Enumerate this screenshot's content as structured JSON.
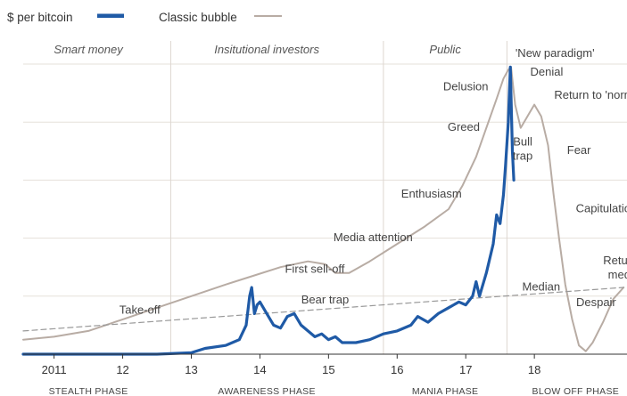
{
  "legend": {
    "btc_label": "$ per bitcoin",
    "bubble_label": "Classic bubble"
  },
  "phases_top": [
    {
      "label": "Smart money",
      "x": 2011.5
    },
    {
      "label": "Insitutional investors",
      "x": 2014.1
    },
    {
      "label": "Public",
      "x": 2016.7
    }
  ],
  "phases_bottom": [
    {
      "label": "STEALTH PHASE",
      "x": 2011.5
    },
    {
      "label": "AWARENESS PHASE",
      "x": 2014.1
    },
    {
      "label": "MANIA PHASE",
      "x": 2016.7
    },
    {
      "label": "BLOW OFF PHASE",
      "x": 2018.6
    }
  ],
  "colors": {
    "btc": "#1f5aa6",
    "bubble": "#b8aca4",
    "median": "#999999",
    "grid": "#e6e0da",
    "divider": "#ddd6d0",
    "baseline": "#333333"
  },
  "chart_data": {
    "type": "line",
    "title": "",
    "xlabel": "",
    "ylabel": "",
    "xlim": [
      2010.55,
      2019.35
    ],
    "ylim": [
      0,
      100
    ],
    "x_ticks": [
      {
        "x": 2011,
        "label": "2011"
      },
      {
        "x": 2012,
        "label": "12"
      },
      {
        "x": 2013,
        "label": "13"
      },
      {
        "x": 2014,
        "label": "14"
      },
      {
        "x": 2015,
        "label": "15"
      },
      {
        "x": 2016,
        "label": "16"
      },
      {
        "x": 2017,
        "label": "17"
      },
      {
        "x": 2018,
        "label": "18"
      }
    ],
    "phase_dividers": [
      2012.7,
      2015.8,
      2017.6
    ],
    "gridlines_y": [
      20,
      40,
      60,
      80,
      100
    ],
    "grid": true,
    "legend_position": "top-left",
    "series": [
      {
        "name": "Classic bubble",
        "style": "thin",
        "x": [
          2010.55,
          2011.0,
          2011.5,
          2012.0,
          2012.5,
          2013.0,
          2013.5,
          2013.9,
          2014.3,
          2014.7,
          2014.95,
          2015.1,
          2015.3,
          2015.6,
          2016.0,
          2016.4,
          2016.75,
          2016.95,
          2017.15,
          2017.3,
          2017.45,
          2017.55,
          2017.62,
          2017.66,
          2017.72,
          2017.8,
          2017.9,
          2018.0,
          2018.1,
          2018.2,
          2018.28,
          2018.36,
          2018.45,
          2018.55,
          2018.65,
          2018.75,
          2018.85,
          2019.0,
          2019.15,
          2019.3
        ],
        "y": [
          5,
          6,
          8,
          12,
          16,
          20,
          24,
          27,
          30,
          32,
          31,
          28,
          28,
          32,
          38,
          44,
          50,
          58,
          68,
          78,
          88,
          95,
          98,
          99,
          86,
          78,
          82,
          86,
          82,
          72,
          55,
          40,
          24,
          12,
          3,
          1,
          4,
          11,
          19,
          23
        ]
      },
      {
        "name": "Median",
        "style": "dashed",
        "x": [
          2010.55,
          2019.3
        ],
        "y": [
          8,
          23
        ]
      },
      {
        "name": "$ per bitcoin",
        "style": "thick",
        "x": [
          2010.55,
          2011.5,
          2012.5,
          2013.0,
          2013.2,
          2013.5,
          2013.7,
          2013.8,
          2013.85,
          2013.88,
          2013.92,
          2013.96,
          2014.0,
          2014.1,
          2014.2,
          2014.3,
          2014.4,
          2014.5,
          2014.6,
          2014.7,
          2014.8,
          2014.9,
          2015.0,
          2015.1,
          2015.2,
          2015.4,
          2015.6,
          2015.8,
          2016.0,
          2016.2,
          2016.3,
          2016.45,
          2016.6,
          2016.75,
          2016.9,
          2017.0,
          2017.1,
          2017.15,
          2017.2,
          2017.3,
          2017.4,
          2017.45,
          2017.5,
          2017.55,
          2017.58,
          2017.62,
          2017.65,
          2017.68,
          2017.7
        ],
        "y": [
          0,
          0,
          0,
          0.5,
          2,
          3,
          5,
          10,
          20,
          23,
          14,
          17,
          18,
          14,
          10,
          9,
          13,
          14,
          10,
          8,
          6,
          7,
          5,
          6,
          4,
          4,
          5,
          7,
          8,
          10,
          13,
          11,
          14,
          16,
          18,
          17,
          20,
          25,
          20,
          28,
          38,
          48,
          45,
          55,
          65,
          80,
          99,
          70,
          60
        ]
      }
    ],
    "annotations": [
      {
        "text": "Take-off",
        "x": 2012.25,
        "y": 14
      },
      {
        "text": "First sell-off",
        "x": 2014.8,
        "y": 28
      },
      {
        "text": "Bear trap",
        "x": 2014.95,
        "y": 17.5
      },
      {
        "text": "Media attention",
        "x": 2015.65,
        "y": 39
      },
      {
        "text": "Enthusiasm",
        "x": 2016.5,
        "y": 54
      },
      {
        "text": "Greed",
        "x": 2016.97,
        "y": 77
      },
      {
        "text": "Delusion",
        "x": 217.0,
        "y": 91
      },
      {
        "text": "'New paradigm'",
        "x": 2018.3,
        "y": 102.5
      },
      {
        "text": "Denial",
        "x": 2018.18,
        "y": 96
      },
      {
        "text": "Return to 'normal'",
        "x": 2018.95,
        "y": 88
      },
      {
        "text": "Bull",
        "x": 2017.83,
        "y": 72
      },
      {
        "text": "trap",
        "x": 2017.83,
        "y": 67
      },
      {
        "text": "Fear",
        "x": 2018.65,
        "y": 69
      },
      {
        "text": "Capitulation",
        "x": 2019.05,
        "y": 49
      },
      {
        "text": "Median",
        "x": 2018.1,
        "y": 22
      },
      {
        "text": "Despair",
        "x": 2018.9,
        "y": 16.5
      },
      {
        "text": "Return to",
        "x": 2019.35,
        "y": 31
      },
      {
        "text": "median",
        "x": 2019.35,
        "y": 26
      }
    ]
  }
}
